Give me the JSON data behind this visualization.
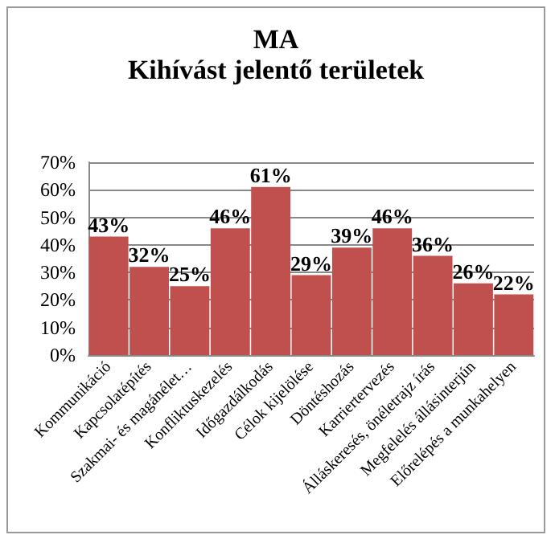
{
  "chart_data": {
    "type": "bar",
    "title": "MA",
    "subtitle": "Kihívást jelentő területek",
    "categories": [
      "Kommunikáció",
      "Kapcsolatépítés",
      "Szakmai- és magánélet…",
      "Konfliktuskezelés",
      "Időgazdálkodás",
      "Célok kijelölése",
      "Döntéshozás",
      "Karriertervezés",
      "Álláskeresés, önéletrajz írás",
      "Megfelelés állásinterjún",
      "Előrelépés a munkahelyen"
    ],
    "values": [
      43,
      32,
      25,
      46,
      61,
      29,
      39,
      46,
      36,
      26,
      22
    ],
    "value_labels": [
      "43%",
      "32%",
      "25%",
      "46%",
      "61%",
      "29%",
      "39%",
      "46%",
      "36%",
      "26%",
      "22%"
    ],
    "color": "#c0504d",
    "ylim": [
      0,
      70
    ],
    "yticks": [
      {
        "value": 0,
        "label": "0%"
      },
      {
        "value": 10,
        "label": "10%"
      },
      {
        "value": 20,
        "label": "20%"
      },
      {
        "value": 30,
        "label": "30%"
      },
      {
        "value": 40,
        "label": "40%"
      },
      {
        "value": 50,
        "label": "50%"
      },
      {
        "value": 60,
        "label": "60%"
      },
      {
        "value": 70,
        "label": "70%"
      }
    ],
    "grid": "y"
  }
}
